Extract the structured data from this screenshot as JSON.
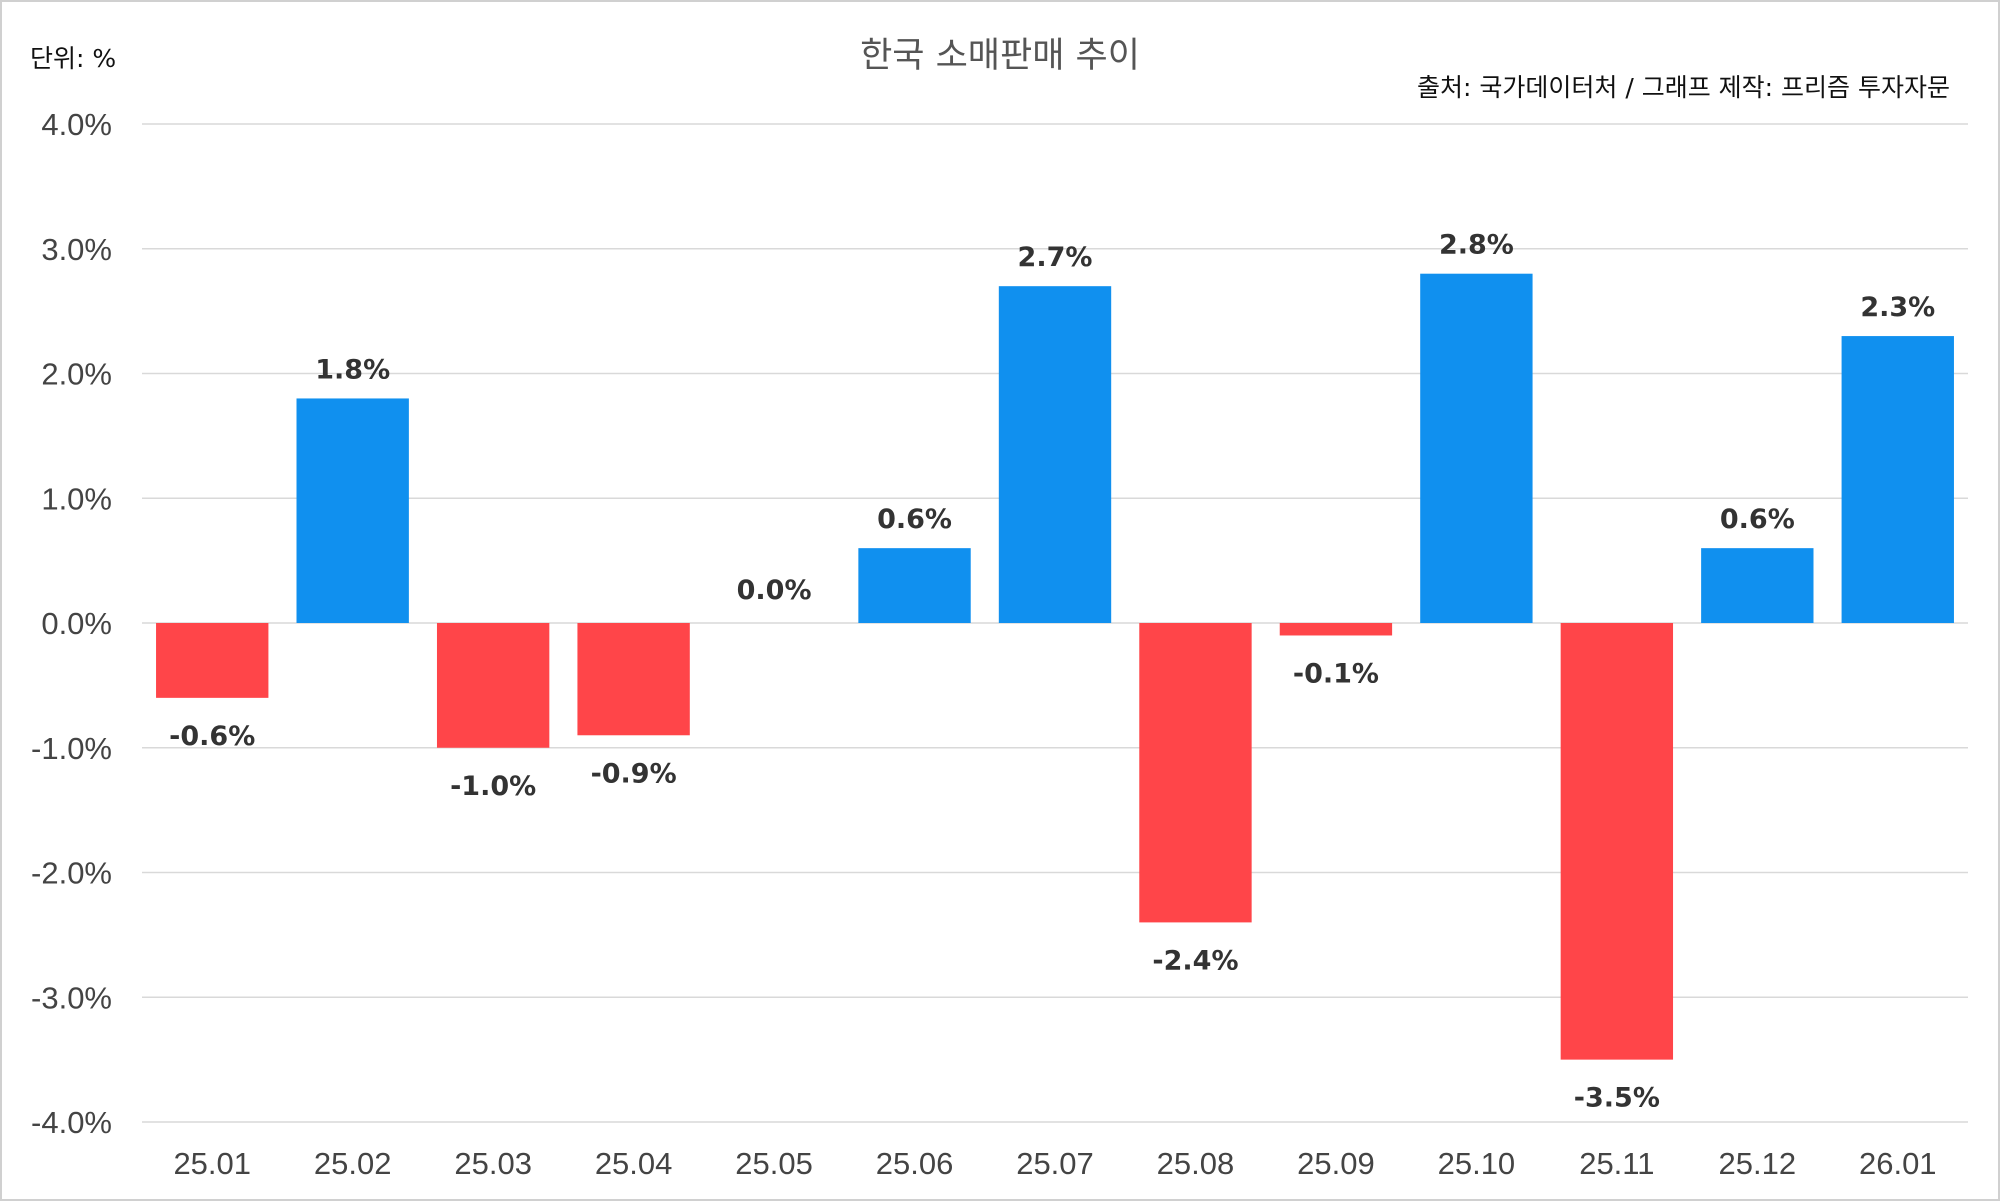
{
  "chart_data": {
    "type": "bar",
    "title": "한국 소매판매 추이",
    "unit_label": "단위: %",
    "source_label": "출처: 국가데이터처 / 그래프 제작: 프리즘 투자자문",
    "categories": [
      "25.01",
      "25.02",
      "25.03",
      "25.04",
      "25.05",
      "25.06",
      "25.07",
      "25.08",
      "25.09",
      "25.10",
      "25.11",
      "25.12",
      "26.01"
    ],
    "values": [
      -0.6,
      1.8,
      -1.0,
      -0.9,
      0.0,
      0.6,
      2.7,
      -2.4,
      -0.1,
      2.8,
      -3.5,
      0.6,
      2.3
    ],
    "data_labels": [
      "-0.6%",
      "1.8%",
      "-1.0%",
      "-0.9%",
      "0.0%",
      "0.6%",
      "2.7%",
      "-2.4%",
      "-0.1%",
      "2.8%",
      "-3.5%",
      "0.6%",
      "2.3%"
    ],
    "ylim": [
      -4.0,
      4.0
    ],
    "yticks": [
      4.0,
      3.0,
      2.0,
      1.0,
      0.0,
      -1.0,
      -2.0,
      -3.0,
      -4.0
    ],
    "ytick_labels": [
      "4.0%",
      "3.0%",
      "2.0%",
      "1.0%",
      "0.0%",
      "-1.0%",
      "-2.0%",
      "-3.0%",
      "-4.0%"
    ],
    "xlabel": "",
    "ylabel": "",
    "grid": true,
    "legend": "none",
    "colors": {
      "positive": "#1090ef",
      "negative": "#ff4549"
    }
  }
}
